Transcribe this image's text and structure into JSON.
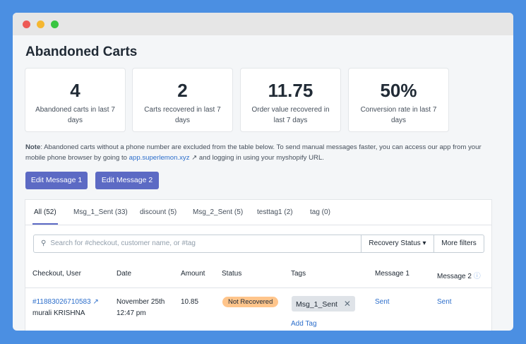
{
  "header": {
    "title": "Abandoned Carts"
  },
  "stats": [
    {
      "value": "4",
      "label": "Abandoned carts in last 7 days"
    },
    {
      "value": "2",
      "label": "Carts recovered in last 7 days"
    },
    {
      "value": "11.75",
      "label": "Order value recovered in last 7 days"
    },
    {
      "value": "50%",
      "label": "Conversion rate in last 7 days"
    }
  ],
  "note": {
    "lead": "Note",
    "text": ": Abandoned carts without a phone number are excluded from the table below. To send manual messages faster, you can access our app from your mobile phone browser by going to",
    "link": "app.superlemon.xyz",
    "tail": "and logging in using your myshopify URL."
  },
  "buttons": [
    "Edit Message 1",
    "Edit Message 2"
  ],
  "tabs": [
    "All (52)",
    "Msg_1_Sent (33)",
    "discount (5)",
    "Msg_2_Sent (5)",
    "testtag1 (2)",
    "tag (0)"
  ],
  "search": {
    "placeholder": "Search for #checkout, customer name, or #tag",
    "status": "Recovery Status",
    "more": "More filters"
  },
  "table": {
    "headers": [
      "Checkout, User",
      "Date",
      "Amount",
      "Status",
      "Tags",
      "Message 1",
      "Message 2"
    ],
    "rows": [
      {
        "checkout": "#11883026710583",
        "user": "murali KRISHNA",
        "date": "November 25th",
        "time": "12:47 pm",
        "amount": "10.85",
        "status": "Not Recovered",
        "tag": "Msg_1_Sent",
        "add_tag": "Add Tag",
        "message1": "Sent",
        "message2": "Sent"
      }
    ]
  }
}
